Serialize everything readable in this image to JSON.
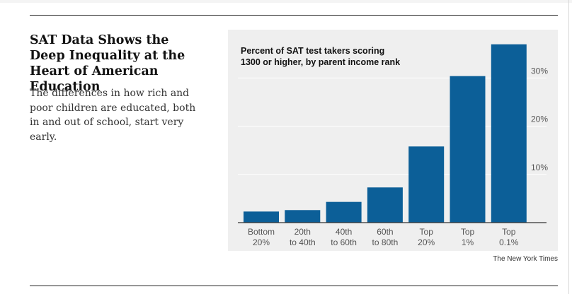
{
  "article": {
    "headline": "SAT Data Shows the Deep Inequality at the Heart of American Education",
    "summary": "The differences in how rich and poor children are educated, both in and out of school, start very early."
  },
  "credit": "The New York Times",
  "colors": {
    "bar": "#0c5f98",
    "panel_background": "#efefef",
    "gridline": "#ffffff",
    "tick_text": "#555555",
    "baseline": "#333333"
  },
  "chart_data": {
    "type": "bar",
    "title": "Percent of SAT test takers scoring 1300 or higher, by parent income rank",
    "categories": [
      [
        "Bottom",
        "20%"
      ],
      [
        "20th",
        "to 40th"
      ],
      [
        "40th",
        "to 60th"
      ],
      [
        "60th",
        "to 80th"
      ],
      [
        "Top",
        "20%"
      ],
      [
        "Top",
        "1%"
      ],
      [
        "Top",
        "0.1%"
      ]
    ],
    "values": [
      2.3,
      2.6,
      4.3,
      7.3,
      15.8,
      30.4,
      37.0
    ],
    "yticks": [
      10,
      20,
      30
    ],
    "ytick_labels": [
      "10%",
      "20%",
      "30%"
    ],
    "ylim": [
      0,
      38
    ],
    "ylabel": "",
    "xlabel": "",
    "grid": true,
    "y_axis_side": "right"
  }
}
